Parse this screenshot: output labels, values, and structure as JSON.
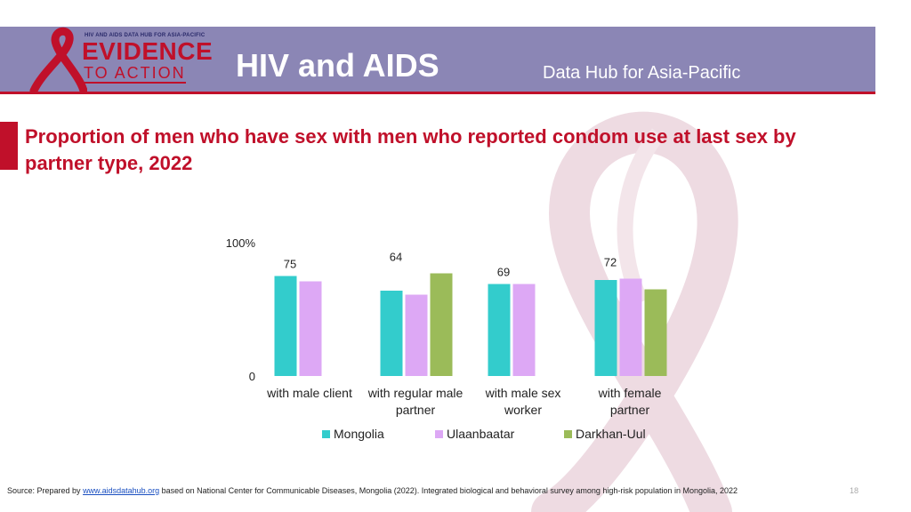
{
  "header": {
    "logo_tagline": "HIV AND AIDS DATA HUB FOR ASIA-PACIFIC",
    "logo_word_1": "EVIDENCE",
    "logo_word_2": "TO ACTION",
    "title": "HIV and AIDS",
    "subtitle": "Data Hub for Asia-Pacific",
    "band_color": "#8b86b5",
    "accent_color": "#c0102a"
  },
  "chart_data": {
    "type": "bar",
    "title": "Proportion of men who have sex with men who reported condom use at last sex by partner type, 2022",
    "categories": [
      [
        "with male client"
      ],
      [
        "with regular male",
        "partner"
      ],
      [
        "with male sex",
        "worker"
      ],
      [
        "with female",
        "partner"
      ]
    ],
    "series": [
      {
        "name": "Mongolia",
        "color": "#33cccc",
        "values": [
          75,
          64,
          69,
          72
        ]
      },
      {
        "name": "Ulaanbaatar",
        "color": "#dda8f5",
        "values": [
          71,
          61,
          69,
          73
        ]
      },
      {
        "name": "Darkhan-Uul",
        "color": "#9bbb59",
        "values": [
          null,
          77,
          null,
          65
        ]
      }
    ],
    "data_labels": [
      {
        "category": 0,
        "text": "75"
      },
      {
        "category": 1,
        "text": "64"
      },
      {
        "category": 2,
        "text": "69"
      },
      {
        "category": 3,
        "text": "72"
      }
    ],
    "y_ticks": [
      {
        "value": 0,
        "label": "0"
      },
      {
        "value": 100,
        "label": "100%"
      }
    ],
    "ylim": [
      0,
      100
    ],
    "grid": false,
    "legend_position": "bottom"
  },
  "footer": {
    "source_prefix": "Source: Prepared by ",
    "source_link": "www.aidsdatahub.org",
    "source_suffix": " based on National Center for Communicable Diseases, Mongolia (2022). Integrated biological and behavioral survey among high-risk population in Mongolia, 2022",
    "page_number": "18"
  }
}
